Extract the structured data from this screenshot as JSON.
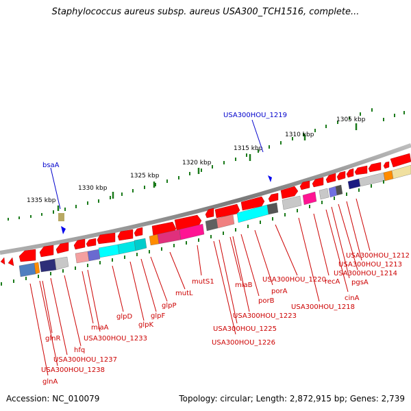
{
  "title": "Staphylococcus aureus subsp. aureus USA300_TCH1516, complete...",
  "accession": "Accession: NC_010079",
  "summary": "Topology: circular; Length: 2,872,915 bp; Genes: 2,739",
  "colors": {
    "gene_arrow": "#ff0000",
    "leader_line_gene": "#cc0000",
    "leader_line_feature": "#0000cc",
    "ruler_tick": "#1a7a1a",
    "backbone": "#808080"
  },
  "ruler_labels": [
    "1335 kbp",
    "1330 kbp",
    "1325 kbp",
    "1320 kbp",
    "1315 kbp",
    "1310 kbp",
    "1305 kbp"
  ],
  "top_features": [
    "bsaA",
    "USA300HOU_1219"
  ],
  "gene_labels": [
    "glnA",
    "USA300HOU_1238",
    "USA300HOU_1237",
    "glnR",
    "hfq",
    "miaA",
    "USA300HOU_1233",
    "glpD",
    "glpK",
    "glpF",
    "glpP",
    "mutL",
    "mutS1",
    "USA300HOU_1226",
    "USA300HOU_1225",
    "USA300HOU_1223",
    "miaB",
    "porB",
    "porA",
    "USA300HOU_1220",
    "USA300HOU_1218",
    "recA",
    "cinA",
    "pgsA",
    "USA300HOU_1214",
    "USA300HOU_1213",
    "USA300HOU_1212"
  ]
}
